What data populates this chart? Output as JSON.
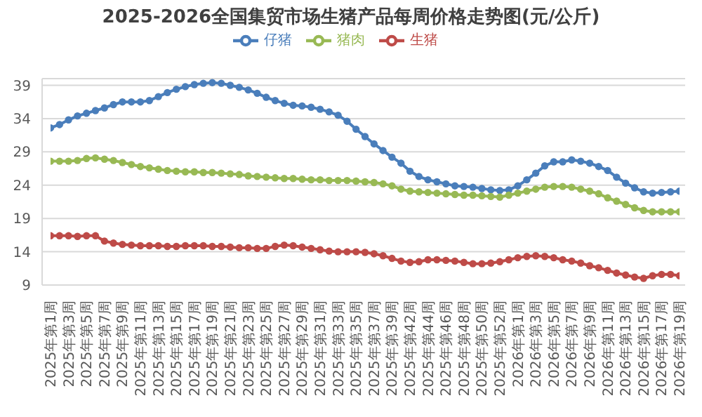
{
  "chart_data": {
    "type": "line",
    "title": "2025-2026全国集贸市场生猪产品每周价格走势图(元/公斤)",
    "categories": [
      "2025年第1周",
      null,
      "2025年第3周",
      null,
      "2025年第5周",
      null,
      "2025年第7周",
      null,
      "2025年第9周",
      null,
      "2025年第11周",
      null,
      "2025年第13周",
      null,
      "2025年第15周",
      null,
      "2025年第17周",
      null,
      "2025年第19周",
      null,
      "2025年第21周",
      null,
      "2025年第23周",
      null,
      "2025年第25周",
      null,
      "2025年第27周",
      null,
      "2025年第29周",
      null,
      "2025年第31周",
      null,
      "2025年第33周",
      null,
      "2025年第35周",
      null,
      "2025年第37周",
      null,
      "2025年第39周",
      null,
      "2025年第42周",
      null,
      "2025年第44周",
      null,
      "2025年第46周",
      null,
      "2025年第48周",
      null,
      "2025年第50周",
      null,
      "2025年第52周",
      null,
      "2026年第1周",
      null,
      "2026年第3周",
      null,
      "2026年第5周",
      null,
      "2026年第7周",
      null,
      "2026年第9周",
      null,
      "2026年第11周",
      null,
      "2026年第13周",
      null,
      "2026年第15周",
      null,
      "2026年第17周",
      null,
      "2026年第19周"
    ],
    "series": [
      {
        "name": "仔猪",
        "color": "#4a7ebb",
        "values": [
          32.6,
          33.1,
          33.8,
          34.4,
          34.8,
          35.2,
          35.6,
          36.1,
          36.5,
          36.5,
          36.5,
          36.7,
          37.3,
          37.9,
          38.4,
          38.8,
          39.1,
          39.3,
          39.4,
          39.3,
          39.0,
          38.7,
          38.3,
          37.8,
          37.2,
          36.7,
          36.3,
          36.0,
          35.9,
          35.7,
          35.4,
          35.0,
          34.5,
          33.6,
          32.4,
          31.3,
          30.2,
          29.2,
          28.2,
          27.3,
          26.1,
          25.3,
          24.8,
          24.5,
          24.2,
          23.9,
          23.8,
          23.7,
          23.5,
          23.3,
          23.2,
          23.3,
          23.9,
          24.8,
          25.8,
          26.9,
          27.5,
          27.5,
          27.8,
          27.6,
          27.3,
          26.8,
          26.2,
          25.2,
          24.3,
          23.6,
          23.0,
          22.8,
          22.9,
          23.0,
          23.1
        ]
      },
      {
        "name": "生猪",
        "color": "#be4b48",
        "values": [
          16.4,
          16.4,
          16.4,
          16.3,
          16.4,
          16.4,
          15.6,
          15.3,
          15.1,
          15.0,
          14.9,
          14.9,
          14.9,
          14.8,
          14.8,
          14.9,
          14.9,
          14.9,
          14.8,
          14.8,
          14.7,
          14.6,
          14.6,
          14.5,
          14.5,
          14.8,
          15.0,
          14.9,
          14.7,
          14.5,
          14.3,
          14.1,
          14.0,
          14.0,
          14.0,
          13.9,
          13.7,
          13.4,
          13.0,
          12.6,
          12.4,
          12.5,
          12.8,
          12.8,
          12.7,
          12.6,
          12.4,
          12.2,
          12.2,
          12.3,
          12.5,
          12.8,
          13.1,
          13.3,
          13.4,
          13.3,
          13.1,
          12.8,
          12.6,
          12.3,
          11.9,
          11.6,
          11.2,
          10.8,
          10.5,
          10.2,
          10.0,
          10.4,
          10.6,
          10.6,
          10.4
        ]
      },
      {
        "name": "猪肉",
        "color": "#98b954",
        "values": [
          27.6,
          27.6,
          27.6,
          27.7,
          28.0,
          28.1,
          27.9,
          27.7,
          27.4,
          27.1,
          26.8,
          26.6,
          26.4,
          26.2,
          26.1,
          26.0,
          26.0,
          25.9,
          25.9,
          25.8,
          25.7,
          25.6,
          25.4,
          25.3,
          25.2,
          25.1,
          25.0,
          25.0,
          24.9,
          24.8,
          24.8,
          24.7,
          24.7,
          24.7,
          24.6,
          24.5,
          24.4,
          24.2,
          23.9,
          23.4,
          23.1,
          23.0,
          22.9,
          22.8,
          22.7,
          22.6,
          22.5,
          22.5,
          22.4,
          22.3,
          22.2,
          22.5,
          22.8,
          23.1,
          23.4,
          23.7,
          23.8,
          23.8,
          23.7,
          23.4,
          23.1,
          22.7,
          22.1,
          21.6,
          21.1,
          20.6,
          20.2,
          20.0,
          20.0,
          20.0,
          20.0
        ]
      }
    ],
    "ylim": [
      9,
      40
    ],
    "yticks": [
      9,
      14,
      19,
      24,
      29,
      34,
      39
    ],
    "grid": "y",
    "legend": "top",
    "marker": "circle",
    "line_style": "solid"
  }
}
